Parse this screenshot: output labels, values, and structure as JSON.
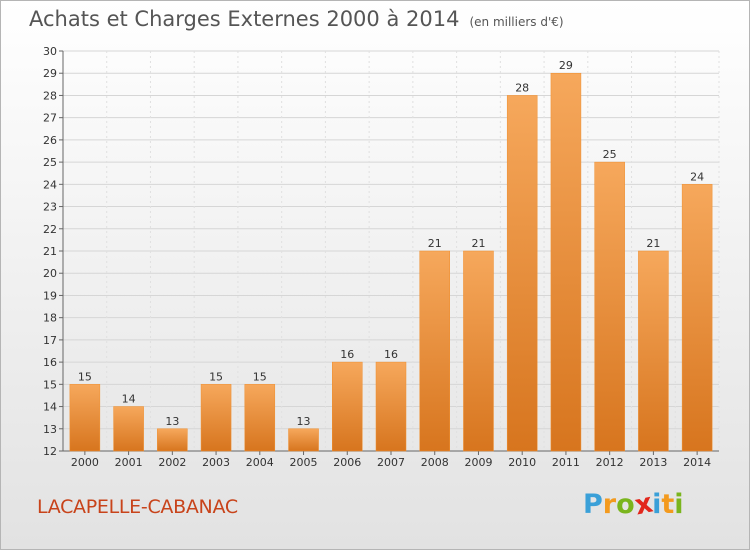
{
  "title": "Achats et Charges Externes 2000 à 2014",
  "unit": "(en milliers d'€)",
  "commune": "LACAPELLE-CABANAC",
  "logo": {
    "letters": [
      "P",
      "r",
      "o",
      "x",
      "i",
      "t",
      "i"
    ],
    "colors": [
      "#3aa0d8",
      "#f39a1e",
      "#7ab51d",
      "#e2271c",
      "#3aa0d8",
      "#f39a1e",
      "#7ab51d"
    ]
  },
  "colors": {
    "bar": "#f08e2c",
    "bar_light": "#f6a85c",
    "bar_dark": "#d7751e",
    "title": "#555555",
    "commune": "#c8431a"
  },
  "chart_data": {
    "type": "bar",
    "categories": [
      "2000",
      "2001",
      "2002",
      "2003",
      "2004",
      "2005",
      "2006",
      "2007",
      "2008",
      "2009",
      "2010",
      "2011",
      "2012",
      "2013",
      "2014"
    ],
    "values": [
      15,
      14,
      13,
      15,
      15,
      13,
      16,
      16,
      21,
      21,
      28,
      29,
      25,
      21,
      24
    ],
    "ylim": [
      12,
      30
    ],
    "yticks": [
      12,
      13,
      14,
      15,
      16,
      17,
      18,
      19,
      20,
      21,
      22,
      23,
      24,
      25,
      26,
      27,
      28,
      29,
      30
    ],
    "grid": true
  }
}
